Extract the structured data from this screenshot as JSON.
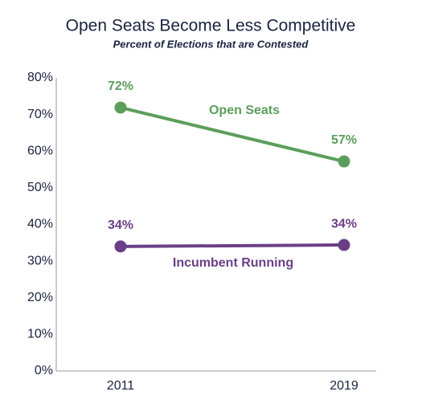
{
  "chart_data": {
    "type": "line",
    "title": "Open Seats Become Less Competitive",
    "subtitle": "Percent of Elections that are Contested",
    "categories": [
      "2011",
      "2019"
    ],
    "series": [
      {
        "name": "Open Seats",
        "color": "#5b9e5b",
        "values": [
          71.9,
          57.2
        ],
        "value_labels": [
          "72%",
          "57%"
        ]
      },
      {
        "name": "Incumbent Running",
        "color": "#6b3f87",
        "values": [
          34.0,
          34.4
        ],
        "value_labels": [
          "34%",
          "34%"
        ]
      }
    ],
    "ylim": [
      0,
      80
    ],
    "yticks": [
      {
        "value": 0,
        "label": "0%"
      },
      {
        "value": 10,
        "label": "10%"
      },
      {
        "value": 20,
        "label": "20%"
      },
      {
        "value": 30,
        "label": "30%"
      },
      {
        "value": 40,
        "label": "40%"
      },
      {
        "value": 50,
        "label": "50%"
      },
      {
        "value": 60,
        "label": "60%"
      },
      {
        "value": 70,
        "label": "70%"
      },
      {
        "value": 80,
        "label": "80%"
      }
    ],
    "grid": false
  }
}
